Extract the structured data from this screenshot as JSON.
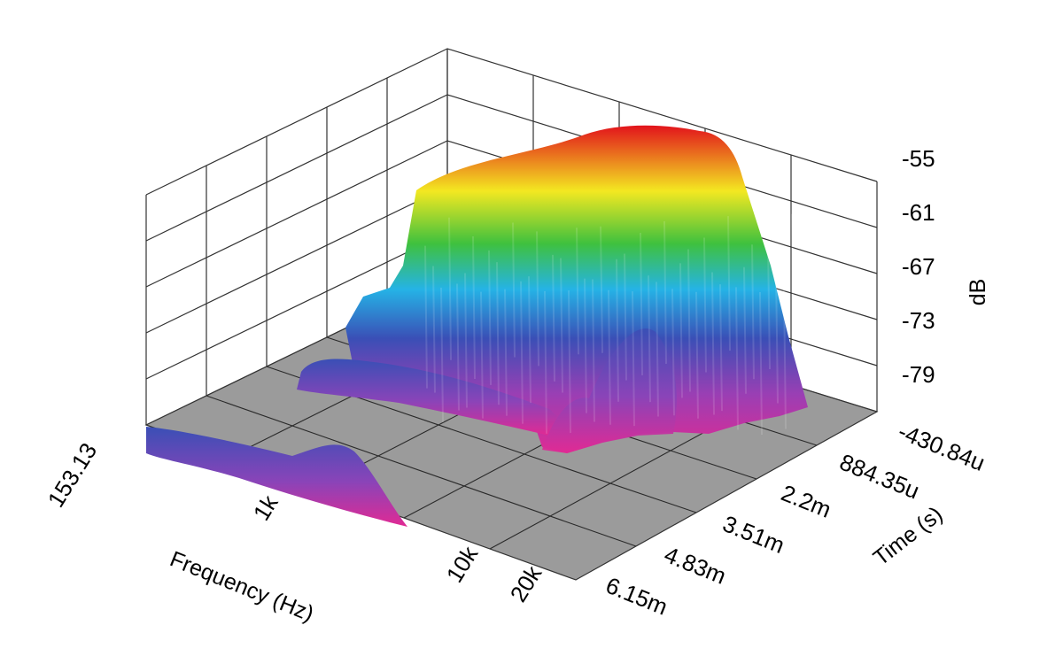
{
  "chart_data": {
    "type": "waterfall-3d-surface",
    "z_axis": {
      "title": "dB",
      "ticks": [
        "-55",
        "-61",
        "-67",
        "-73",
        "-79"
      ]
    },
    "frequency_axis": {
      "title": "Frequency (Hz)",
      "ticks": [
        "153.13",
        "1k",
        "10k",
        "20k"
      ],
      "range": [
        153.13,
        20000
      ],
      "scale": "log"
    },
    "time_axis": {
      "title": "Time (s)",
      "ticks": [
        "-430.84u",
        "884.35u",
        "2.2m",
        "3.51m",
        "4.83m",
        "6.15m"
      ]
    },
    "color_scale": [
      "#d81f8f",
      "#3a4db8",
      "#21b8e8",
      "#3cc33c",
      "#f4e820",
      "#e3121b"
    ]
  }
}
